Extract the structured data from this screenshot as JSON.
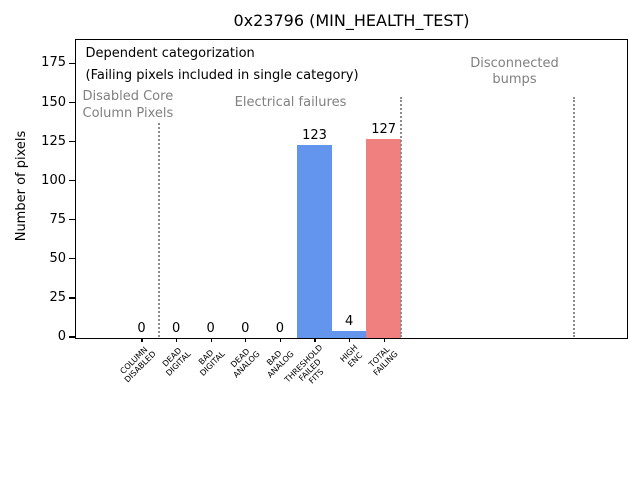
{
  "figure": {
    "title": "0x23796 (MIN_HEALTH_TEST)"
  },
  "chart_data": {
    "type": "bar",
    "title": "0x23796 (MIN_HEALTH_TEST)",
    "xlabel": "",
    "ylabel": "Number of pixels",
    "categories": [
      "COLUMN\nDISABLED",
      "DEAD\nDIGITAL",
      "BAD\nDIGITAL",
      "DEAD\nANALOG",
      "BAD\nANALOG",
      "THRESHOLD\nFAILED\nFITS",
      "HIGH\nENC",
      "TOTAL\nFAILING"
    ],
    "values": [
      0,
      0,
      0,
      0,
      0,
      123,
      4,
      127
    ],
    "value_labels": [
      "0",
      "0",
      "0",
      "0",
      "0",
      "123",
      "4",
      "127"
    ],
    "bar_colors": [
      "#6495ED",
      "#6495ED",
      "#6495ED",
      "#6495ED",
      "#6495ED",
      "#6495ED",
      "#6495ED",
      "#F08080"
    ],
    "yticks": [
      0,
      25,
      50,
      75,
      100,
      125,
      150,
      175
    ],
    "ylim": [
      0,
      190
    ],
    "grid": false,
    "legend_position": "none",
    "annotations": {
      "dependent_line1": "Dependent categorization",
      "dependent_line2": "(Failing pixels included in single category)",
      "left_region": "Disabled Core\nColumn Pixels",
      "mid_region": "Electrical failures",
      "right_region": "Disconnected\nbumps"
    },
    "separators": {
      "style": "dotted",
      "color": "#8c8c8c",
      "positions_bar_index": [
        0.5,
        7.5,
        12.5
      ]
    },
    "colors": {
      "bar_blue": "#6495ED",
      "bar_red": "#F08080",
      "annotation_gray": "#808080",
      "text_black": "#000000"
    }
  }
}
